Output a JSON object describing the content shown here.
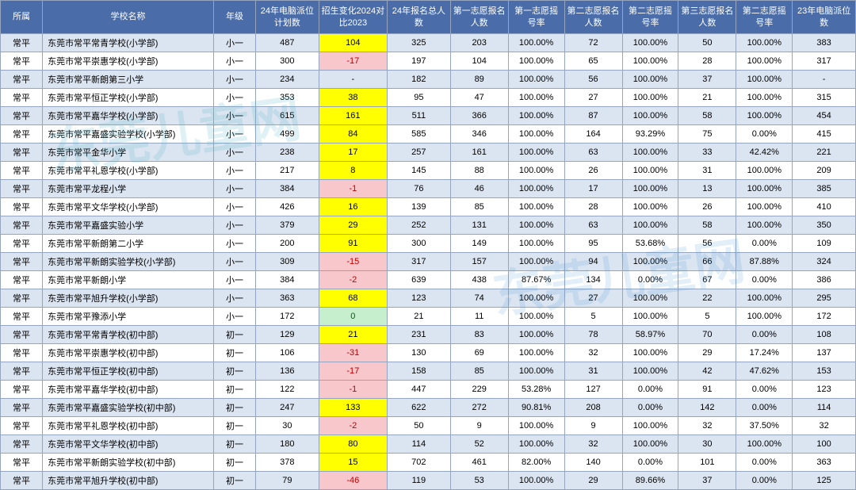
{
  "watermark_text": "东莞儿童网",
  "table": {
    "header_bg": "#4a6ca8",
    "header_color": "#ffffff",
    "row_odd_bg": "#dbe5f1",
    "row_even_bg": "#ffffff",
    "border_color": "#95a5c0",
    "change_pos_bg": "#ffff00",
    "change_neg_bg": "#f8c7cb",
    "change_neg_color": "#c00000",
    "change_zero_bg": "#c6efce",
    "change_zero_color": "#006100",
    "columns": [
      "所属",
      "学校名称",
      "年级",
      "24年电脑派位计划数",
      "招生变化2024对比2023",
      "24年报名总人数",
      "第一志愿报名人数",
      "第一志愿摇号率",
      "第二志愿报名人数",
      "第二志愿摇号率",
      "第三志愿报名人数",
      "第二志愿摇号率",
      "23年电脑派位数"
    ],
    "rows": [
      [
        "常平",
        "东莞市常平常青学校(小学部)",
        "小一",
        "487",
        "104",
        "325",
        "203",
        "100.00%",
        "72",
        "100.00%",
        "50",
        "100.00%",
        "383"
      ],
      [
        "常平",
        "东莞市常平崇惠学校(小学部)",
        "小一",
        "300",
        "-17",
        "197",
        "104",
        "100.00%",
        "65",
        "100.00%",
        "28",
        "100.00%",
        "317"
      ],
      [
        "常平",
        "东莞市常平新朗第三小学",
        "小一",
        "234",
        "-",
        "182",
        "89",
        "100.00%",
        "56",
        "100.00%",
        "37",
        "100.00%",
        "-"
      ],
      [
        "常平",
        "东莞市常平恒正学校(小学部)",
        "小一",
        "353",
        "38",
        "95",
        "47",
        "100.00%",
        "27",
        "100.00%",
        "21",
        "100.00%",
        "315"
      ],
      [
        "常平",
        "东莞市常平嘉华学校(小学部)",
        "小一",
        "615",
        "161",
        "511",
        "366",
        "100.00%",
        "87",
        "100.00%",
        "58",
        "100.00%",
        "454"
      ],
      [
        "常平",
        "东莞市常平嘉盛实验学校(小学部)",
        "小一",
        "499",
        "84",
        "585",
        "346",
        "100.00%",
        "164",
        "93.29%",
        "75",
        "0.00%",
        "415"
      ],
      [
        "常平",
        "东莞市常平金华小学",
        "小一",
        "238",
        "17",
        "257",
        "161",
        "100.00%",
        "63",
        "100.00%",
        "33",
        "42.42%",
        "221"
      ],
      [
        "常平",
        "东莞市常平礼恩学校(小学部)",
        "小一",
        "217",
        "8",
        "145",
        "88",
        "100.00%",
        "26",
        "100.00%",
        "31",
        "100.00%",
        "209"
      ],
      [
        "常平",
        "东莞市常平龙程小学",
        "小一",
        "384",
        "-1",
        "76",
        "46",
        "100.00%",
        "17",
        "100.00%",
        "13",
        "100.00%",
        "385"
      ],
      [
        "常平",
        "东莞市常平文华学校(小学部)",
        "小一",
        "426",
        "16",
        "139",
        "85",
        "100.00%",
        "28",
        "100.00%",
        "26",
        "100.00%",
        "410"
      ],
      [
        "常平",
        "东莞市常平嘉盛实验小学",
        "小一",
        "379",
        "29",
        "252",
        "131",
        "100.00%",
        "63",
        "100.00%",
        "58",
        "100.00%",
        "350"
      ],
      [
        "常平",
        "东莞市常平新朗第二小学",
        "小一",
        "200",
        "91",
        "300",
        "149",
        "100.00%",
        "95",
        "53.68%",
        "56",
        "0.00%",
        "109"
      ],
      [
        "常平",
        "东莞市常平新朗实验学校(小学部)",
        "小一",
        "309",
        "-15",
        "317",
        "157",
        "100.00%",
        "94",
        "100.00%",
        "66",
        "87.88%",
        "324"
      ],
      [
        "常平",
        "东莞市常平新朗小学",
        "小一",
        "384",
        "-2",
        "639",
        "438",
        "87.67%",
        "134",
        "0.00%",
        "67",
        "0.00%",
        "386"
      ],
      [
        "常平",
        "东莞市常平旭升学校(小学部)",
        "小一",
        "363",
        "68",
        "123",
        "74",
        "100.00%",
        "27",
        "100.00%",
        "22",
        "100.00%",
        "295"
      ],
      [
        "常平",
        "东莞市常平豫添小学",
        "小一",
        "172",
        "0",
        "21",
        "11",
        "100.00%",
        "5",
        "100.00%",
        "5",
        "100.00%",
        "172"
      ],
      [
        "常平",
        "东莞市常平常青学校(初中部)",
        "初一",
        "129",
        "21",
        "231",
        "83",
        "100.00%",
        "78",
        "58.97%",
        "70",
        "0.00%",
        "108"
      ],
      [
        "常平",
        "东莞市常平崇惠学校(初中部)",
        "初一",
        "106",
        "-31",
        "130",
        "69",
        "100.00%",
        "32",
        "100.00%",
        "29",
        "17.24%",
        "137"
      ],
      [
        "常平",
        "东莞市常平恒正学校(初中部)",
        "初一",
        "136",
        "-17",
        "158",
        "85",
        "100.00%",
        "31",
        "100.00%",
        "42",
        "47.62%",
        "153"
      ],
      [
        "常平",
        "东莞市常平嘉华学校(初中部)",
        "初一",
        "122",
        "-1",
        "447",
        "229",
        "53.28%",
        "127",
        "0.00%",
        "91",
        "0.00%",
        "123"
      ],
      [
        "常平",
        "东莞市常平嘉盛实验学校(初中部)",
        "初一",
        "247",
        "133",
        "622",
        "272",
        "90.81%",
        "208",
        "0.00%",
        "142",
        "0.00%",
        "114"
      ],
      [
        "常平",
        "东莞市常平礼恩学校(初中部)",
        "初一",
        "30",
        "-2",
        "50",
        "9",
        "100.00%",
        "9",
        "100.00%",
        "32",
        "37.50%",
        "32"
      ],
      [
        "常平",
        "东莞市常平文华学校(初中部)",
        "初一",
        "180",
        "80",
        "114",
        "52",
        "100.00%",
        "32",
        "100.00%",
        "30",
        "100.00%",
        "100"
      ],
      [
        "常平",
        "东莞市常平新朗实验学校(初中部)",
        "初一",
        "378",
        "15",
        "702",
        "461",
        "82.00%",
        "140",
        "0.00%",
        "101",
        "0.00%",
        "363"
      ],
      [
        "常平",
        "东莞市常平旭升学校(初中部)",
        "初一",
        "79",
        "-46",
        "119",
        "53",
        "100.00%",
        "29",
        "89.66%",
        "37",
        "0.00%",
        "125"
      ]
    ]
  }
}
